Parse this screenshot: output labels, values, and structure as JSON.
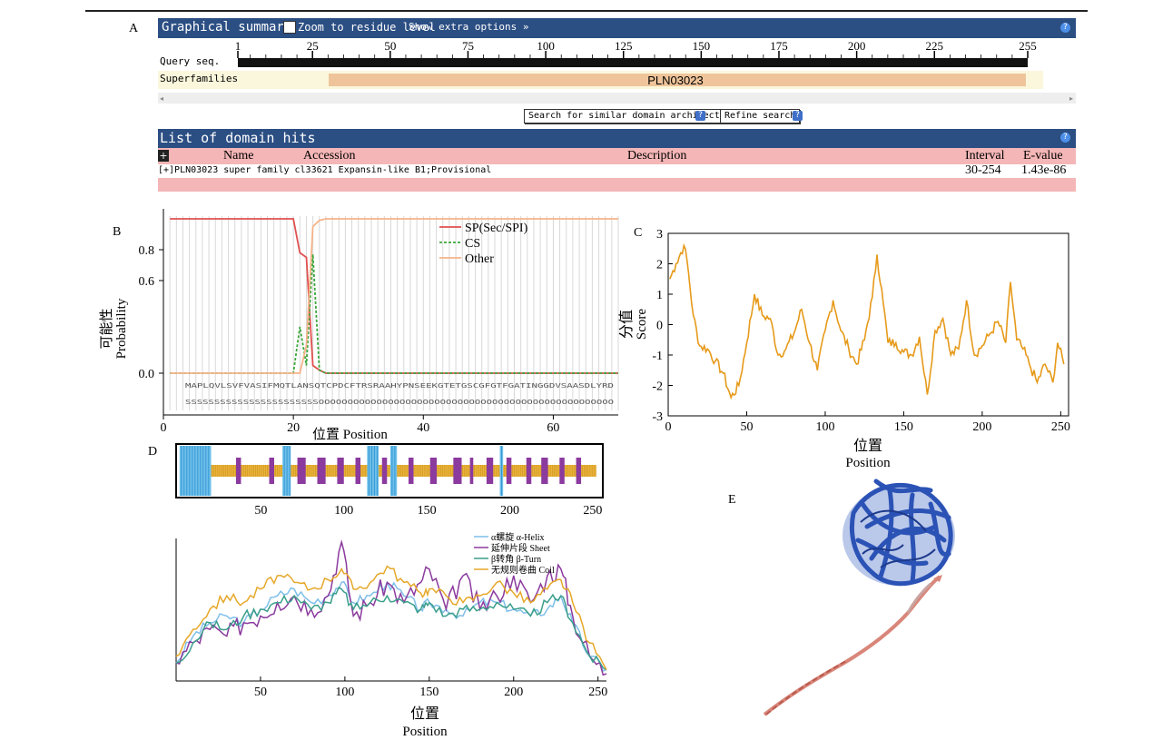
{
  "panel_labels": {
    "a": "A",
    "b": "B",
    "c": "C",
    "d": "D",
    "e": "E"
  },
  "panelA": {
    "header_title": "Graphical summary",
    "zoom_label": "Zoom to residue level",
    "extra_options": "Show extra options »",
    "ruler_ticks": [
      "1",
      "25",
      "50",
      "75",
      "100",
      "125",
      "150",
      "175",
      "200",
      "225",
      "255"
    ],
    "query_label": "Query seq.",
    "superfamilies_label": "Superfamilies",
    "domain_name": "PLN03023",
    "search_button": "Search for similar domain architectures",
    "refine_button": "Refine search",
    "help_glyph": "?",
    "list_title": "List of domain hits",
    "columns": {
      "expand": "+",
      "name": "Name",
      "accession": "Accession",
      "description": "Description",
      "interval": "Interval",
      "evalue": "E-value"
    },
    "hit_row": {
      "text": "[+]PLN03023 super family cl33621 Expansin-like B1;Provisional",
      "interval": "30-254",
      "evalue": "1.43e-86"
    }
  },
  "chart_data": [
    {
      "id": "B",
      "type": "line",
      "ylabel_cn": "可能性",
      "ylabel_en": "Probability",
      "xlabel": "位置 Position",
      "xlim": [
        0,
        70
      ],
      "ylim": [
        -0.15,
        1.0
      ],
      "x_ticks": [
        "0",
        "20",
        "40",
        "60"
      ],
      "y_ticks": [
        "0.0",
        "0.6",
        "0.8"
      ],
      "legend": [
        "SP(Sec/SPI)",
        "CS",
        "Other"
      ],
      "colors": {
        "sp": "#e05050",
        "cs": "#3aa63a",
        "other": "#f5b48a"
      },
      "series": [
        {
          "name": "SP(Sec/SPI)",
          "x": [
            1,
            20,
            21,
            22,
            23,
            24,
            25,
            70
          ],
          "y": [
            1.0,
            1.0,
            0.78,
            0.75,
            0.05,
            0.02,
            0.0,
            0.0
          ]
        },
        {
          "name": "CS",
          "x": [
            1,
            20,
            21,
            22,
            23,
            24,
            25,
            70
          ],
          "y": [
            0.0,
            0.0,
            0.3,
            0.05,
            0.77,
            0.02,
            0.0,
            0.0
          ]
        },
        {
          "name": "Other",
          "x": [
            1,
            20,
            21,
            22,
            23,
            24,
            25,
            70
          ],
          "y": [
            0.0,
            0.0,
            0.0,
            0.18,
            0.95,
            0.99,
            1.0,
            1.0
          ]
        }
      ]
    },
    {
      "id": "C",
      "type": "line",
      "ylabel_cn": "分值",
      "ylabel_en": "Score",
      "xlabel_cn": "位置",
      "xlabel_en": "Position",
      "xlim": [
        0,
        255
      ],
      "ylim": [
        -3,
        3
      ],
      "x_ticks": [
        "0",
        "50",
        "100",
        "150",
        "200",
        "250"
      ],
      "y_ticks": [
        "3",
        "2",
        "1",
        "0",
        "-1",
        "-2",
        "-3"
      ],
      "color": "#e69a1a",
      "x": [
        1,
        5,
        10,
        12,
        16,
        20,
        25,
        30,
        35,
        40,
        45,
        50,
        55,
        60,
        65,
        70,
        75,
        80,
        85,
        90,
        95,
        100,
        105,
        110,
        115,
        120,
        125,
        130,
        133,
        137,
        140,
        145,
        150,
        155,
        160,
        165,
        170,
        175,
        180,
        185,
        190,
        195,
        200,
        205,
        210,
        215,
        218,
        222,
        226,
        230,
        235,
        240,
        245,
        248,
        252
      ],
      "y": [
        1.5,
        2.0,
        2.6,
        2.1,
        0.3,
        -0.7,
        -0.8,
        -1.2,
        -1.6,
        -2.4,
        -2.0,
        -0.6,
        1.0,
        0.3,
        0.2,
        -1.0,
        -0.8,
        -0.3,
        0.5,
        -0.6,
        -1.5,
        -0.2,
        0.8,
        -0.2,
        -0.8,
        -1.3,
        -0.5,
        0.9,
        2.3,
        0.7,
        -0.6,
        -0.6,
        -0.9,
        -1.0,
        -0.4,
        -2.3,
        -0.2,
        0.2,
        -1.0,
        -0.8,
        0.8,
        -1.0,
        -0.7,
        -0.3,
        0.1,
        -0.6,
        1.4,
        -0.5,
        -0.8,
        -1.3,
        -1.9,
        -1.3,
        -1.9,
        -0.6,
        -1.3
      ]
    },
    {
      "id": "D-top",
      "type": "bar",
      "xlim": [
        0,
        255
      ],
      "x_ticks": [
        "50",
        "100",
        "150",
        "200",
        "250"
      ],
      "helix_segments": [
        [
          1,
          20
        ],
        [
          63,
          68
        ],
        [
          114,
          121
        ],
        [
          128,
          132
        ],
        [
          194,
          196
        ]
      ],
      "sheet_segments": [
        [
          35,
          38
        ],
        [
          55,
          58
        ],
        [
          72,
          77
        ],
        [
          84,
          89
        ],
        [
          96,
          100
        ],
        [
          107,
          110
        ],
        [
          123,
          126
        ],
        [
          139,
          142
        ],
        [
          152,
          156
        ],
        [
          166,
          171
        ],
        [
          176,
          178
        ],
        [
          186,
          190
        ],
        [
          198,
          201
        ],
        [
          210,
          213
        ],
        [
          219,
          223
        ],
        [
          230,
          233
        ],
        [
          240,
          243
        ]
      ]
    },
    {
      "id": "D-bottom",
      "type": "line",
      "xlabel_cn": "位置",
      "xlabel_en": "Position",
      "xlim": [
        0,
        255
      ],
      "x_ticks": [
        "50",
        "100",
        "150",
        "200",
        "250"
      ],
      "legend": [
        "α螺旋 α-Helix",
        "延伸片段 Sheet",
        "β转角 β-Turn",
        "无规则卷曲 Coil"
      ],
      "colors": {
        "helix": "#7fbfea",
        "sheet": "#8b3a9e",
        "turn": "#3a9e8b",
        "coil": "#e6a82a"
      },
      "x": [
        0,
        10,
        20,
        30,
        40,
        50,
        60,
        70,
        80,
        90,
        98,
        105,
        115,
        125,
        135,
        145,
        150,
        160,
        170,
        180,
        190,
        200,
        210,
        220,
        228,
        235,
        245,
        255
      ],
      "series": [
        {
          "name": "Helix",
          "y": [
            0.1,
            0.3,
            0.4,
            0.45,
            0.4,
            0.5,
            0.6,
            0.65,
            0.55,
            0.6,
            0.7,
            0.55,
            0.6,
            0.7,
            0.6,
            0.5,
            0.55,
            0.5,
            0.45,
            0.55,
            0.55,
            0.5,
            0.45,
            0.5,
            0.6,
            0.4,
            0.15,
            0.05
          ]
        },
        {
          "name": "Sheet",
          "y": [
            0.1,
            0.25,
            0.35,
            0.3,
            0.4,
            0.45,
            0.55,
            0.6,
            0.5,
            0.6,
            1.0,
            0.45,
            0.55,
            0.7,
            0.55,
            0.7,
            0.8,
            0.5,
            0.75,
            0.5,
            0.6,
            0.75,
            0.55,
            0.75,
            0.8,
            0.45,
            0.15,
            0.02
          ]
        },
        {
          "name": "Turn",
          "y": [
            0.1,
            0.25,
            0.4,
            0.35,
            0.45,
            0.5,
            0.55,
            0.6,
            0.5,
            0.55,
            0.65,
            0.5,
            0.55,
            0.6,
            0.55,
            0.5,
            0.55,
            0.45,
            0.5,
            0.5,
            0.55,
            0.5,
            0.45,
            0.55,
            0.6,
            0.4,
            0.15,
            0.05
          ]
        },
        {
          "name": "Coil",
          "y": [
            0.15,
            0.35,
            0.5,
            0.6,
            0.55,
            0.65,
            0.75,
            0.7,
            0.65,
            0.72,
            0.8,
            0.65,
            0.7,
            0.82,
            0.7,
            0.62,
            0.65,
            0.6,
            0.55,
            0.6,
            0.7,
            0.62,
            0.55,
            0.65,
            0.72,
            0.55,
            0.25,
            0.05
          ]
        }
      ]
    }
  ],
  "residues_row1": "MAPLQVLSVFVASIFMQTLANSQTCPDCFTRSRAAHYPNSEEKGTETGSCGFGTFGATINGGDVSAASDLYRD",
  "residues_row2": "SSSSSSSSSSSSSSSSSSSSSSSOOOOOOOOOOOOOOOOOOOOOOOOOOOOOOOOOOOOOOOOOOOOOOOOOOO"
}
